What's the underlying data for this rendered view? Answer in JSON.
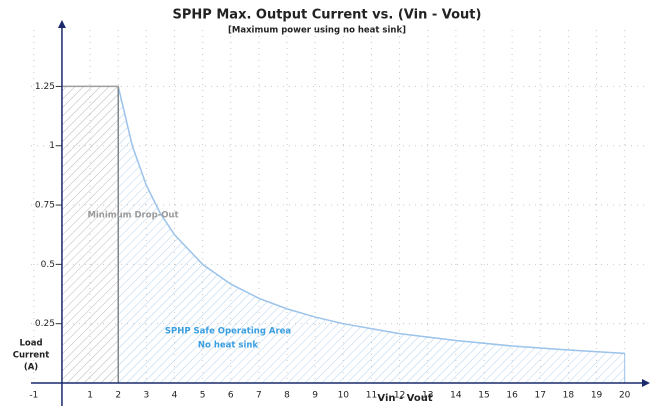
{
  "chart_data": {
    "type": "area",
    "title": "SPHP Max. Output Current vs. (Vin - Vout)",
    "subtitle": "[Maximum power using no heat sink]",
    "xlabel": "Vin - Vout",
    "ylabel": [
      "Load",
      "Current",
      "(A)"
    ],
    "xlim": [
      -1.1,
      20.9
    ],
    "ylim": [
      0,
      1.53
    ],
    "xticks": [
      -1,
      1,
      2,
      3,
      4,
      5,
      6,
      7,
      8,
      9,
      10,
      11,
      12,
      13,
      14,
      15,
      16,
      17,
      18,
      19,
      20
    ],
    "yticks": [
      0.25,
      0.5,
      0.75,
      1,
      1.25
    ],
    "grid": true,
    "series": [
      {
        "name": "Minimum Drop-Out",
        "color": "#a0a0a0",
        "x": [
          0,
          2
        ],
        "values": [
          1.25,
          1.25
        ]
      },
      {
        "name": "SPHP Safe Operating Area",
        "note": "No heat sink",
        "color": "#9cc3ea",
        "x": [
          2,
          2.5,
          3,
          3.5,
          4,
          5,
          6,
          7,
          8,
          9,
          10,
          12,
          14,
          16,
          18,
          20
        ],
        "values": [
          1.25,
          1,
          0.833,
          0.714,
          0.625,
          0.5,
          0.417,
          0.357,
          0.3125,
          0.278,
          0.25,
          0.208,
          0.179,
          0.156,
          0.139,
          0.125
        ]
      }
    ]
  }
}
